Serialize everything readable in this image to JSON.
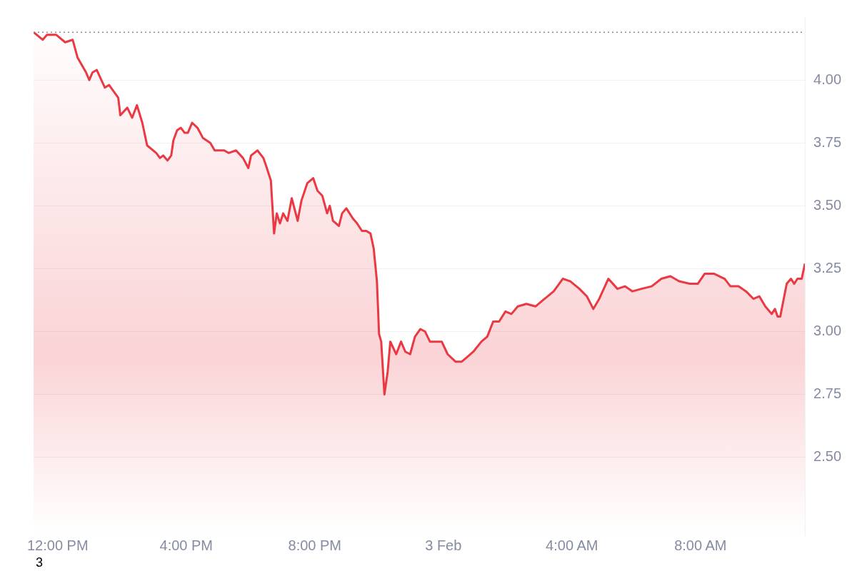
{
  "chart_data": {
    "type": "area",
    "x": [
      "--02-02T11:15",
      "--02-02T11:32",
      "--02-02T11:40",
      "--02-02T11:57",
      "--02-02T12:14",
      "--02-02T12:28",
      "--02-02T12:37",
      "--02-02T12:53",
      "--02-02T12:59",
      "--02-02T13:05",
      "--02-02T13:13",
      "--02-02T13:28",
      "--02-02T13:36",
      "--02-02T13:53",
      "--02-02T13:57",
      "--02-02T14:10",
      "--02-02T14:19",
      "--02-02T14:28",
      "--02-02T14:38",
      "--02-02T14:47",
      "--02-02T15:04",
      "--02-02T15:11",
      "--02-02T15:17",
      "--02-02T15:25",
      "--02-02T15:32",
      "--02-02T15:36",
      "--02-02T15:43",
      "--02-02T15:50",
      "--02-02T15:57",
      "--02-02T16:03",
      "--02-02T16:11",
      "--02-02T16:21",
      "--02-02T16:31",
      "--02-02T16:45",
      "--02-02T16:53",
      "--02-02T17:11",
      "--02-02T17:19",
      "--02-02T17:33",
      "--02-02T17:46",
      "--02-02T17:56",
      "--02-02T18:01",
      "--02-02T18:13",
      "--02-02T18:24",
      "--02-02T18:29",
      "--02-02T18:38",
      "--02-02T18:44",
      "--02-02T18:49",
      "--02-02T18:55",
      "--02-02T19:01",
      "--02-02T19:09",
      "--02-02T19:17",
      "--02-02T19:28",
      "--02-02T19:35",
      "--02-02T19:46",
      "--02-02T19:57",
      "--02-02T20:05",
      "--02-02T20:14",
      "--02-02T20:23",
      "--02-02T20:28",
      "--02-02T20:34",
      "--02-02T20:45",
      "--02-02T20:51",
      "--02-02T20:59",
      "--02-02T21:11",
      "--02-02T21:19",
      "--02-02T21:28",
      "--02-02T21:36",
      "--02-02T21:44",
      "--02-02T21:50",
      "--02-02T21:56",
      "--02-02T22:00",
      "--02-02T22:04",
      "--02-02T22:10",
      "--02-02T22:16",
      "--02-02T22:21",
      "--02-02T22:32",
      "--02-02T22:41",
      "--02-02T22:49",
      "--02-02T22:58",
      "--02-02T23:07",
      "--02-02T23:17",
      "--02-02T23:26",
      "--02-02T23:35",
      "--02-02T23:46",
      "--02-02T23:57",
      "--02-03T00:08",
      "--02-03T00:23",
      "--02-03T00:34",
      "--02-03T00:45",
      "--02-03T00:56",
      "--02-03T01:11",
      "--02-03T01:22",
      "--02-03T01:33",
      "--02-03T01:44",
      "--02-03T01:56",
      "--02-03T02:07",
      "--02-03T02:19",
      "--02-03T02:35",
      "--02-03T02:52",
      "--02-03T03:09",
      "--02-03T03:26",
      "--02-03T03:43",
      "--02-03T03:57",
      "--02-03T04:14",
      "--02-03T04:28",
      "--02-03T04:40",
      "--02-03T04:51",
      "--02-03T05:08",
      "--02-03T05:25",
      "--02-03T05:39",
      "--02-03T05:53",
      "--02-03T06:10",
      "--02-03T06:29",
      "--02-03T06:47",
      "--02-03T07:04",
      "--02-03T07:20",
      "--02-03T07:40",
      "--02-03T07:55",
      "--02-03T08:08",
      "--02-03T08:25",
      "--02-03T08:45",
      "--02-03T08:56",
      "--02-03T09:11",
      "--02-03T09:25",
      "--02-03T09:39",
      "--02-03T09:50",
      "--02-03T10:01",
      "--02-03T10:13",
      "--02-03T10:19",
      "--02-03T10:24",
      "--02-03T10:29",
      "--02-03T10:41",
      "--02-03T10:49",
      "--02-03T10:55",
      "--02-03T11:01",
      "--02-03T11:09",
      "--02-03T11:15"
    ],
    "series": [
      {
        "color": "#ea3943",
        "values": [
          4.19,
          4.16,
          4.18,
          4.18,
          4.15,
          4.16,
          4.09,
          4.03,
          4.0,
          4.03,
          4.04,
          3.97,
          3.98,
          3.93,
          3.86,
          3.89,
          3.85,
          3.9,
          3.83,
          3.74,
          3.71,
          3.69,
          3.7,
          3.68,
          3.7,
          3.76,
          3.8,
          3.81,
          3.79,
          3.79,
          3.83,
          3.81,
          3.77,
          3.75,
          3.72,
          3.72,
          3.71,
          3.72,
          3.69,
          3.65,
          3.7,
          3.72,
          3.69,
          3.66,
          3.6,
          3.39,
          3.47,
          3.43,
          3.47,
          3.44,
          3.53,
          3.44,
          3.52,
          3.59,
          3.61,
          3.56,
          3.54,
          3.47,
          3.5,
          3.44,
          3.42,
          3.47,
          3.49,
          3.45,
          3.43,
          3.4,
          3.4,
          3.39,
          3.33,
          3.2,
          2.99,
          2.96,
          2.75,
          2.84,
          2.96,
          2.91,
          2.96,
          2.92,
          2.91,
          2.98,
          3.01,
          3.0,
          2.96,
          2.96,
          2.96,
          2.91,
          2.88,
          2.88,
          2.9,
          2.92,
          2.96,
          2.98,
          3.04,
          3.04,
          3.08,
          3.07,
          3.1,
          3.11,
          3.1,
          3.13,
          3.16,
          3.21,
          3.2,
          3.17,
          3.14,
          3.09,
          3.13,
          3.21,
          3.17,
          3.18,
          3.16,
          3.17,
          3.18,
          3.21,
          3.22,
          3.2,
          3.19,
          3.19,
          3.23,
          3.23,
          3.21,
          3.18,
          3.18,
          3.16,
          3.13,
          3.14,
          3.1,
          3.07,
          3.09,
          3.06,
          3.06,
          3.19,
          3.21,
          3.19,
          3.21,
          3.21,
          3.27
        ]
      }
    ],
    "xlim": [
      "--02-02T11:15",
      "--02-03T11:15"
    ],
    "xticks": [
      {
        "value": "--02-02T12:00",
        "label": "12:00 PM"
      },
      {
        "value": "--02-02T16:00",
        "label": "4:00 PM"
      },
      {
        "value": "--02-02T20:00",
        "label": "8:00 PM"
      },
      {
        "value": "--02-03T00:00",
        "label": "3 Feb"
      },
      {
        "value": "--02-03T04:00",
        "label": "4:00 AM"
      },
      {
        "value": "--02-03T08:00",
        "label": "8:00 AM"
      }
    ],
    "ylim": [
      2.19,
      4.25
    ],
    "yticks": [
      {
        "value": 2.5,
        "label": "2.50"
      },
      {
        "value": 2.75,
        "label": "2.75"
      },
      {
        "value": 3,
        "label": "3.00"
      },
      {
        "value": 3.25,
        "label": "3.25"
      },
      {
        "value": 3.5,
        "label": "3.50"
      },
      {
        "value": 3.75,
        "label": "3.75"
      },
      {
        "value": 4,
        "label": "4.00"
      }
    ],
    "grid": "y",
    "ref_lines": [
      {
        "axis": "y",
        "value": 4.19,
        "color": "#858ca2",
        "line_style": "dotted"
      }
    ],
    "annotations": [
      "3"
    ]
  }
}
